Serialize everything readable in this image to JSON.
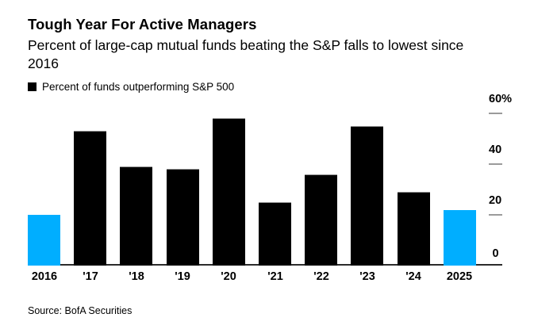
{
  "header": {
    "title": "Tough Year For Active Managers",
    "subtitle_line1": "Percent of large-cap mutual funds beating the S&P falls to lowest since",
    "subtitle_line2": "2016"
  },
  "legend": {
    "label": "Percent of funds outperforming S&P 500",
    "marker_color": "#000000"
  },
  "chart_data": {
    "type": "bar",
    "title": "Tough Year For Active Managers",
    "series_name": "Percent of funds outperforming S&P 500",
    "categories": [
      "2016",
      "'17",
      "'18",
      "'19",
      "'20",
      "'21",
      "'22",
      "'23",
      "'24",
      "2025"
    ],
    "values": [
      20,
      53,
      39,
      38,
      58,
      25,
      36,
      55,
      29,
      22
    ],
    "unit": "%",
    "ylim": [
      0,
      60
    ],
    "y_ticks": [
      {
        "label": "60%",
        "value": 60
      },
      {
        "label": "40",
        "value": 40
      },
      {
        "label": "20",
        "value": 20
      },
      {
        "label": "0",
        "value": 0
      }
    ],
    "axis_side": "right",
    "grid": false,
    "legend_position": "top-left",
    "default_color": "#000000",
    "highlight_color": "#00aeff",
    "highlight_indices": [
      0,
      9
    ]
  },
  "footer": {
    "source": "Source: BofA Securities"
  }
}
